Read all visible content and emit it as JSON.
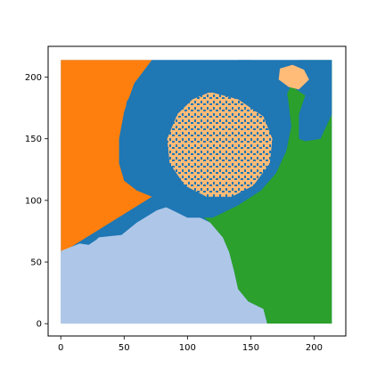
{
  "chart_data": {
    "type": "heatmap",
    "title": "",
    "xlabel": "",
    "ylabel": "",
    "xlim": [
      -10,
      225
    ],
    "ylim": [
      -10,
      225
    ],
    "extent": [
      0,
      214,
      0,
      214
    ],
    "xticks": [
      "0",
      "50",
      "100",
      "150",
      "200"
    ],
    "yticks": [
      "0",
      "50",
      "100",
      "150",
      "200"
    ],
    "grid": false,
    "legend": "none",
    "colors": {
      "orange": "#ff7f0e",
      "blue": "#1f77b4",
      "peach": "#ffbb78",
      "green": "#2ca02c",
      "light_blue": "#aec7e8",
      "frame": "#000000",
      "background": "#ffffff"
    },
    "regions": [
      {
        "class": "orange",
        "color": "#ff7f0e",
        "polygon": [
          [
            0,
            214
          ],
          [
            72,
            214
          ],
          [
            52,
            180
          ],
          [
            48,
            150
          ],
          [
            55,
            130
          ],
          [
            70,
            112
          ],
          [
            72,
            103
          ],
          [
            0,
            57
          ]
        ]
      },
      {
        "class": "light_blue",
        "color": "#aec7e8",
        "polygon": [
          [
            0,
            0
          ],
          [
            163,
            0
          ],
          [
            160,
            12
          ],
          [
            148,
            18
          ],
          [
            140,
            28
          ],
          [
            137,
            42
          ],
          [
            133,
            58
          ],
          [
            128,
            70
          ],
          [
            118,
            82
          ],
          [
            102,
            90
          ],
          [
            88,
            96
          ],
          [
            76,
            92
          ],
          [
            60,
            82
          ],
          [
            48,
            72
          ],
          [
            30,
            70
          ],
          [
            28,
            68
          ],
          [
            22,
            64
          ],
          [
            15,
            65
          ],
          [
            0,
            59
          ]
        ]
      },
      {
        "class": "green",
        "color": "#2ca02c",
        "polygon": [
          [
            193,
            214
          ],
          [
            214,
            214
          ],
          [
            214,
            0
          ],
          [
            163,
            0
          ],
          [
            160,
            12
          ],
          [
            148,
            18
          ],
          [
            140,
            28
          ],
          [
            137,
            42
          ],
          [
            133,
            58
          ],
          [
            128,
            70
          ],
          [
            118,
            82
          ],
          [
            108,
            90
          ],
          [
            125,
            96
          ],
          [
            145,
            108
          ],
          [
            160,
            122
          ],
          [
            172,
            140
          ],
          [
            178,
            160
          ],
          [
            178,
            185
          ],
          [
            185,
            200
          ]
        ]
      },
      {
        "class": "blue",
        "color": "#1f77b4",
        "polygon": [
          [
            72,
            214
          ],
          [
            150,
            214
          ],
          [
            168,
            207
          ],
          [
            178,
            192
          ],
          [
            180,
            178
          ],
          [
            182,
            160
          ],
          [
            178,
            140
          ],
          [
            170,
            122
          ],
          [
            158,
            108
          ],
          [
            140,
            96
          ],
          [
            120,
            86
          ],
          [
            100,
            86
          ],
          [
            88,
            92
          ],
          [
            80,
            96
          ],
          [
            72,
            103
          ],
          [
            60,
            108
          ],
          [
            50,
            116
          ],
          [
            46,
            130
          ],
          [
            46,
            150
          ],
          [
            50,
            172
          ],
          [
            58,
            195
          ]
        ]
      },
      {
        "class": "blue",
        "color": "#1f77b4",
        "polygon": [
          [
            188,
            214
          ],
          [
            214,
            214
          ],
          [
            214,
            170
          ],
          [
            205,
            150
          ],
          [
            193,
            148
          ],
          [
            188,
            150
          ],
          [
            188,
            170
          ],
          [
            193,
            185
          ],
          [
            186,
            190
          ],
          [
            180,
            195
          ]
        ]
      },
      {
        "class": "blue",
        "color": "#1f77b4",
        "polygon": [
          [
            140,
            214
          ],
          [
            193,
            214
          ],
          [
            183,
            205
          ],
          [
            175,
            200
          ],
          [
            160,
            205
          ]
        ]
      },
      {
        "class": "peach",
        "color": "#ffbb78",
        "polygon": [
          [
            173,
            207
          ],
          [
            183,
            210
          ],
          [
            192,
            206
          ],
          [
            196,
            198
          ],
          [
            188,
            190
          ],
          [
            180,
            192
          ],
          [
            172,
            198
          ]
        ]
      },
      {
        "class": "peach",
        "color": "#ffbb78",
        "polygon": [
          [
            118,
            188
          ],
          [
            140,
            182
          ],
          [
            160,
            168
          ],
          [
            167,
            150
          ],
          [
            165,
            130
          ],
          [
            152,
            112
          ],
          [
            135,
            103
          ],
          [
            115,
            103
          ],
          [
            98,
            112
          ],
          [
            86,
            130
          ],
          [
            84,
            150
          ],
          [
            92,
            170
          ],
          [
            104,
            182
          ]
        ]
      }
    ]
  }
}
